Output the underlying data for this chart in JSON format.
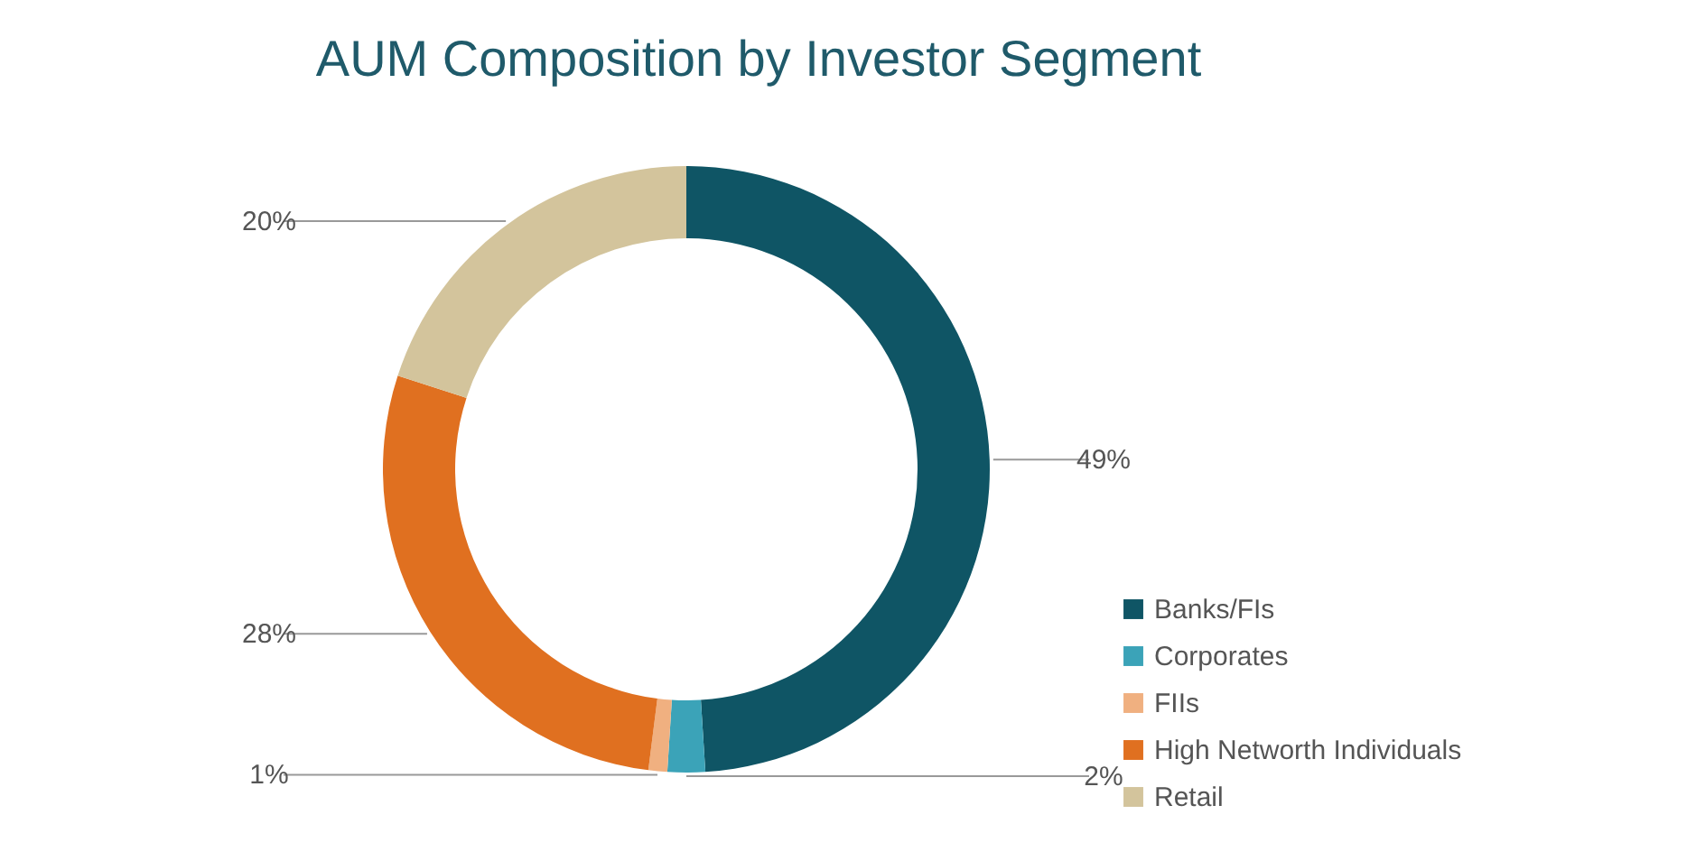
{
  "chart_data": {
    "type": "donut",
    "title": "AUM Composition by Investor Segment",
    "categories": [
      "Banks/FIs",
      "Corporates",
      "FIIs",
      "High Networth Individuals",
      "Retail"
    ],
    "values": [
      49,
      2,
      1,
      28,
      20
    ],
    "colors": [
      "#0f5565",
      "#3ba3b8",
      "#f0b080",
      "#e07020",
      "#d3c49c"
    ],
    "value_labels": [
      "49%",
      "2%",
      "1%",
      "28%",
      "20%"
    ],
    "legend": "bottom right"
  }
}
